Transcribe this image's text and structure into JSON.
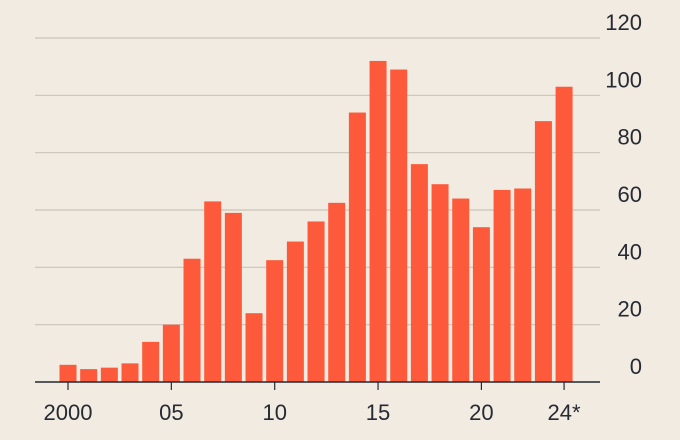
{
  "chart_data": {
    "type": "bar",
    "categories": [
      "2000",
      null,
      null,
      null,
      null,
      "05",
      null,
      null,
      null,
      null,
      "10",
      null,
      null,
      null,
      null,
      "15",
      null,
      null,
      null,
      null,
      "20",
      null,
      null,
      null,
      "24*"
    ],
    "values": [
      6,
      4.5,
      5,
      6.5,
      14,
      20,
      43,
      63,
      59,
      24,
      42.5,
      49,
      56,
      62.5,
      94,
      112,
      109,
      76,
      69,
      64,
      54,
      67,
      67.5,
      91,
      103
    ],
    "color": "#fd5a3b",
    "ylim": [
      0,
      120
    ],
    "yticks": [
      0,
      20,
      40,
      60,
      80,
      100,
      120
    ],
    "grid": true
  }
}
